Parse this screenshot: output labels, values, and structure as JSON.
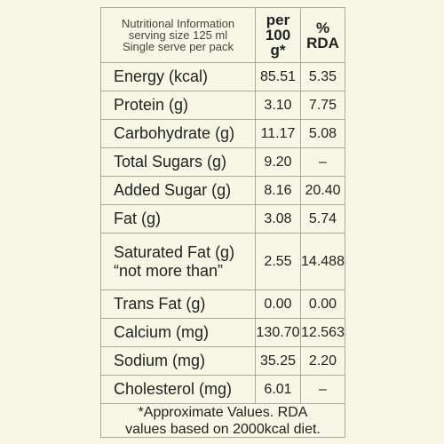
{
  "header": {
    "description": [
      "Nutritional Information",
      "serving size 125 ml",
      "Single serve per pack"
    ],
    "per100": [
      "per",
      "100",
      "g*"
    ],
    "rda": [
      "%",
      "RDA"
    ]
  },
  "table": {
    "rows": [
      {
        "label": [
          "Energy (kcal)"
        ],
        "per100": "85.51",
        "rda": "5.35"
      },
      {
        "label": [
          "Protein (g)"
        ],
        "per100": "3.10",
        "rda": "7.75"
      },
      {
        "label": [
          "Carbohydrate (g)"
        ],
        "per100": "11.17",
        "rda": "5.08"
      },
      {
        "label": [
          "Total Sugars (g)"
        ],
        "per100": "9.20",
        "rda": "–"
      },
      {
        "label": [
          "Added Sugar (g)"
        ],
        "per100": "8.16",
        "rda": "20.40"
      },
      {
        "label": [
          "Fat (g)"
        ],
        "per100": "3.08",
        "rda": "5.74"
      },
      {
        "label": [
          "Saturated Fat (g)",
          "“not more than”"
        ],
        "per100": "2.55",
        "rda": "14.488"
      },
      {
        "label": [
          "Trans Fat (g)"
        ],
        "per100": "0.00",
        "rda": "0.00"
      },
      {
        "label": [
          "Calcium (mg)"
        ],
        "per100": "130.70",
        "rda": "12.563"
      },
      {
        "label": [
          "Sodium (mg)"
        ],
        "per100": "35.25",
        "rda": "2.20"
      },
      {
        "label": [
          "Cholesterol (mg)"
        ],
        "per100": "6.01",
        "rda": "–"
      }
    ]
  },
  "footnote": [
    "*Approximate Values. RDA",
    "values based on 2000kcal diet."
  ]
}
